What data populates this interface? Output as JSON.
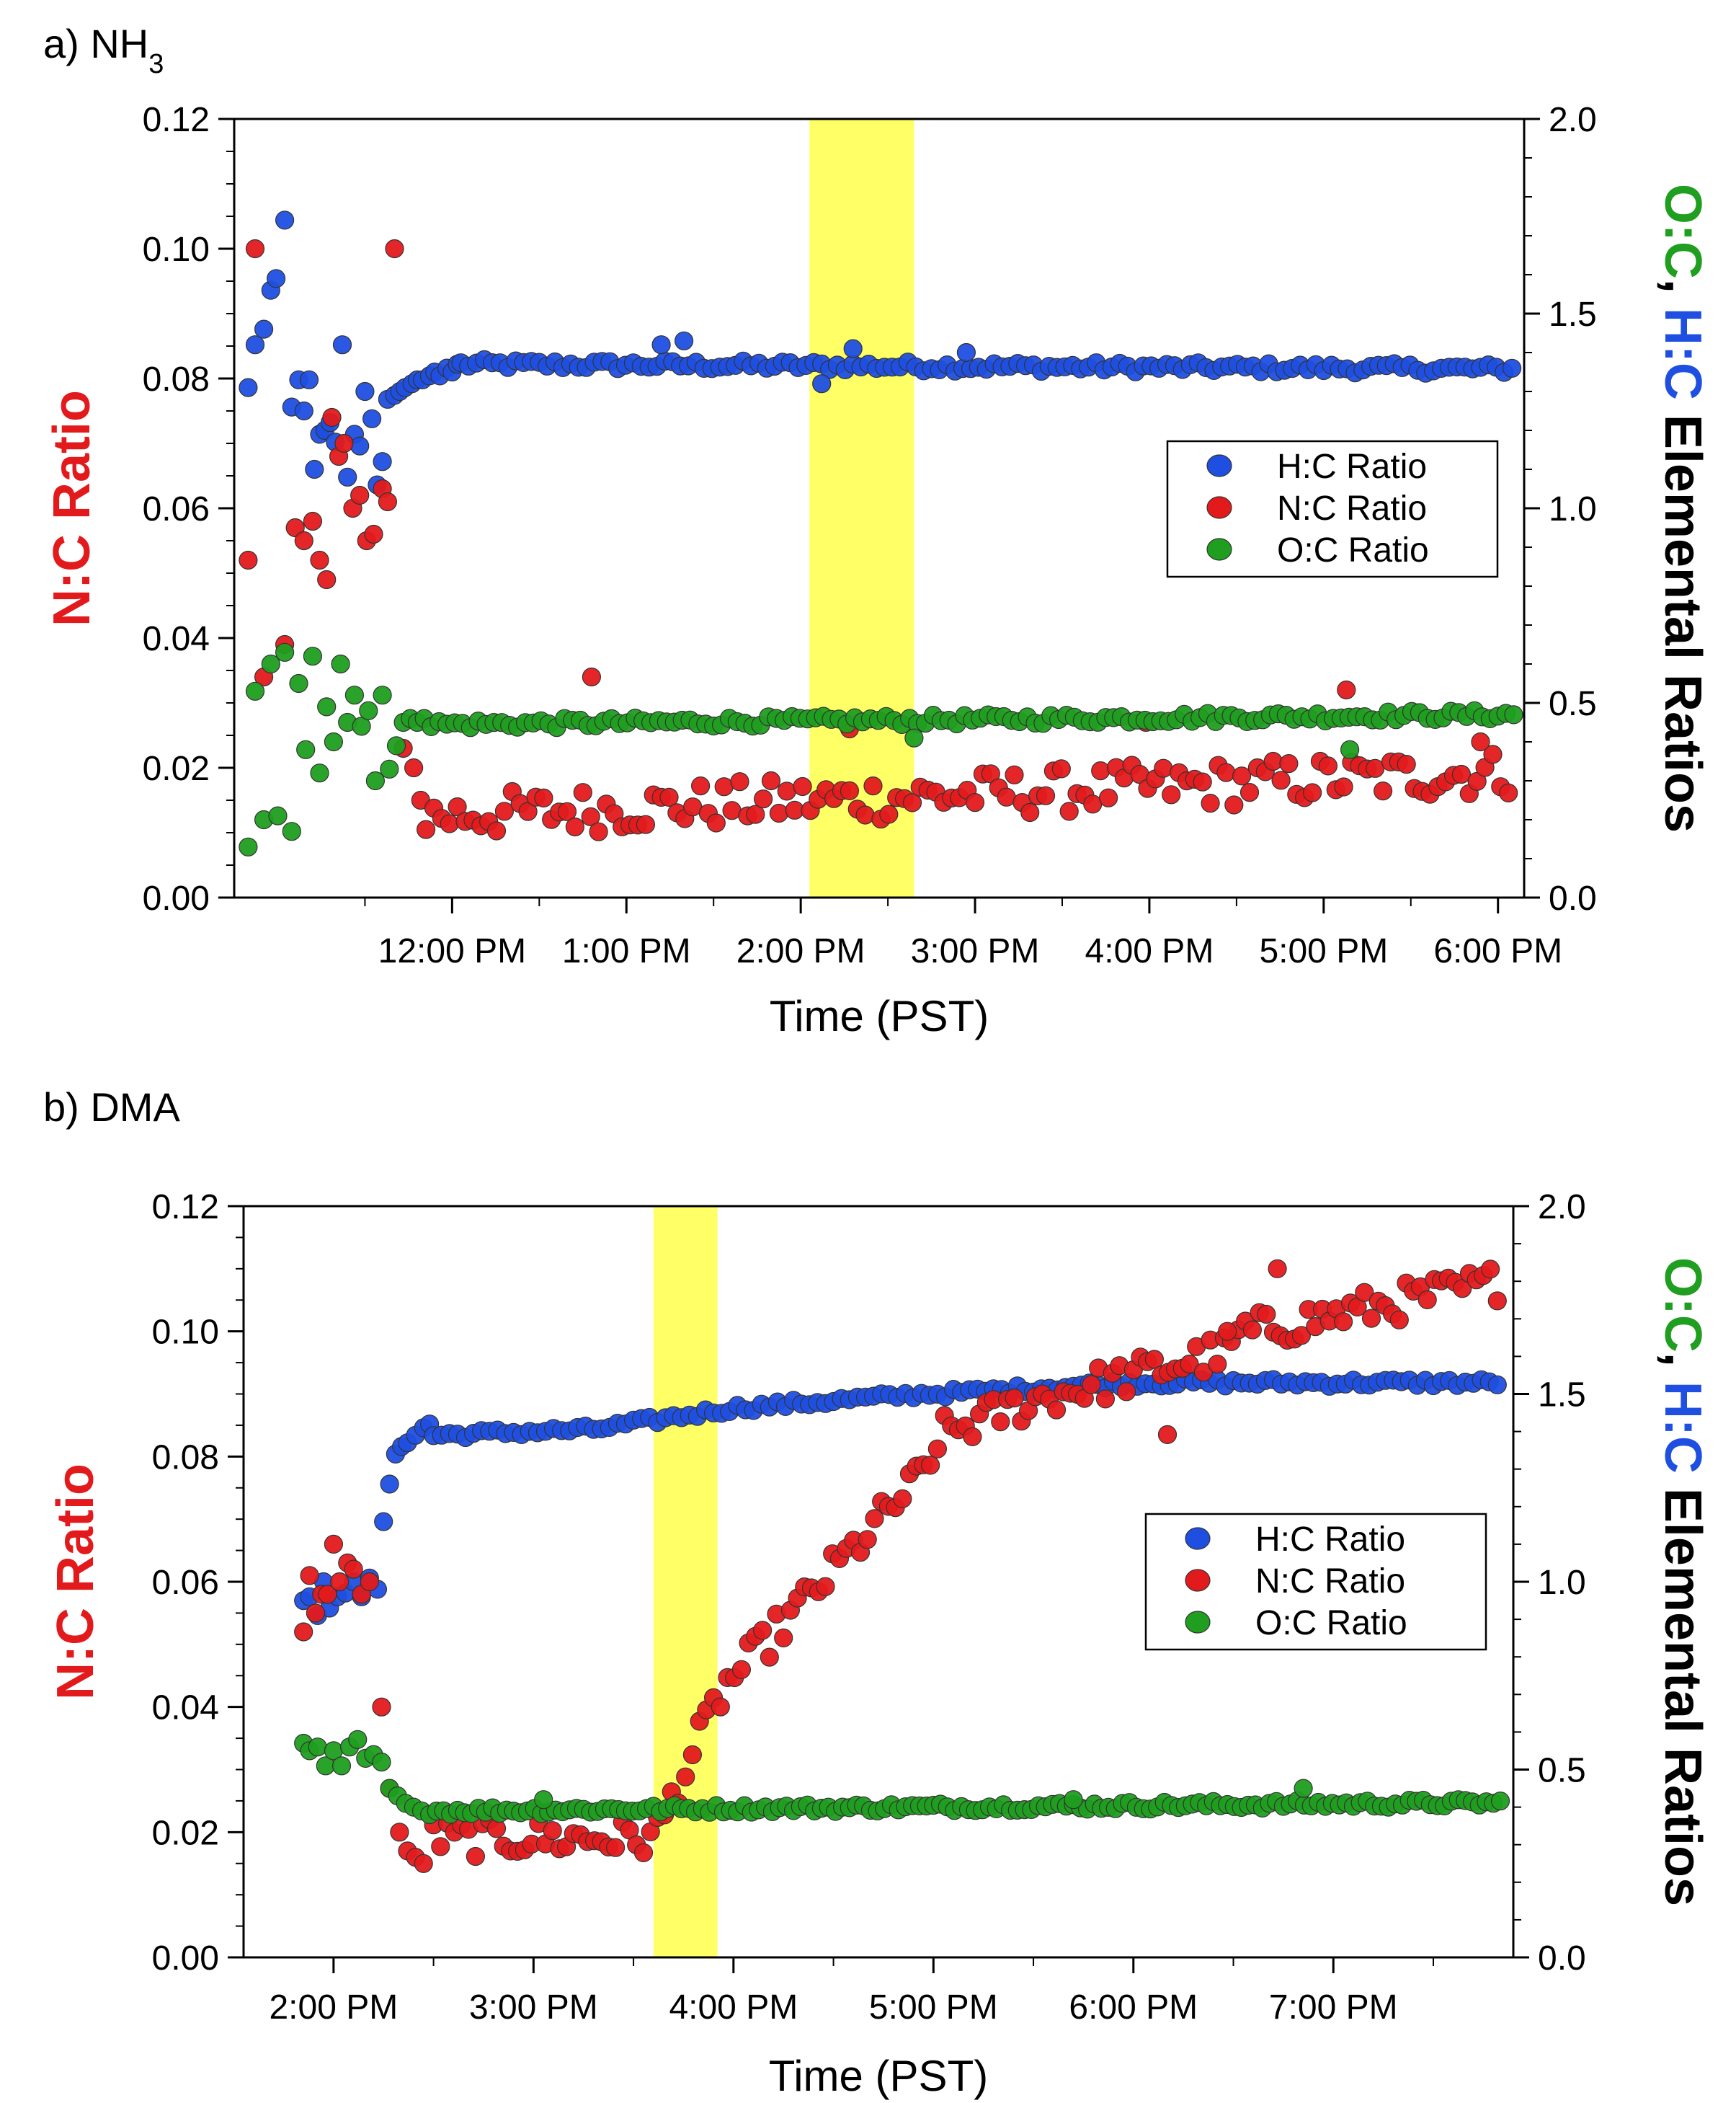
{
  "colors": {
    "hc": "#1f4fe0",
    "nc": "#e31a1c",
    "oc": "#1f9e1f",
    "highlight": "#ffff66",
    "axis": "#000000"
  },
  "chart_data": [
    {
      "panel": "a",
      "title_prefix": "a) NH",
      "title_sub": "3",
      "type": "scatter",
      "xlabel": "Time (PST)",
      "ylabel_left": "N:C Ratio",
      "ylabel_right_parts": [
        "O:C",
        ", ",
        "H:C",
        " Elemental Ratios"
      ],
      "xlim": [
        10.75,
        18.15
      ],
      "ylim_left": [
        0,
        0.12
      ],
      "ylim_right": [
        0,
        2.0
      ],
      "x_ticks": [
        12,
        13,
        14,
        15,
        16,
        17,
        18
      ],
      "x_tick_labels": [
        "12:00 PM",
        "1:00 PM",
        "2:00 PM",
        "3:00 PM",
        "4:00 PM",
        "5:00 PM",
        "6:00 PM"
      ],
      "y_left_ticks": [
        "0.00",
        "0.02",
        "0.04",
        "0.06",
        "0.08",
        "0.10",
        "0.12"
      ],
      "y_right_ticks": [
        "0.0",
        "0.5",
        "1.0",
        "1.5",
        "2.0"
      ],
      "highlight_range": [
        14.05,
        14.65
      ],
      "legend": [
        "H:C Ratio",
        "N:C Ratio",
        "O:C Ratio"
      ],
      "series": [
        {
          "name": "H:C Ratio",
          "axis": "right",
          "early": [
            [
              10.83,
              1.31
            ],
            [
              10.87,
              1.42
            ],
            [
              10.92,
              1.46
            ],
            [
              10.96,
              1.56
            ],
            [
              10.99,
              1.59
            ],
            [
              11.04,
              1.74
            ],
            [
              11.08,
              1.26
            ],
            [
              11.12,
              1.33
            ],
            [
              11.15,
              1.25
            ],
            [
              11.18,
              1.33
            ],
            [
              11.21,
              1.1
            ],
            [
              11.24,
              1.19
            ],
            [
              11.27,
              1.2
            ],
            [
              11.3,
              1.22
            ],
            [
              11.33,
              1.17
            ],
            [
              11.37,
              1.42
            ],
            [
              11.4,
              1.08
            ],
            [
              11.44,
              1.19
            ],
            [
              11.47,
              1.16
            ],
            [
              11.5,
              1.3
            ],
            [
              11.54,
              1.23
            ],
            [
              11.57,
              1.06
            ],
            [
              11.6,
              1.12
            ],
            [
              11.63,
              1.28
            ],
            [
              11.67,
              1.29
            ],
            [
              11.7,
              1.3
            ],
            [
              11.73,
              1.31
            ],
            [
              11.77,
              1.32
            ],
            [
              11.8,
              1.33
            ],
            [
              11.83,
              1.33
            ],
            [
              11.87,
              1.34
            ],
            [
              11.9,
              1.35
            ],
            [
              11.93,
              1.34
            ],
            [
              11.97,
              1.36
            ],
            [
              12.0,
              1.35
            ],
            [
              12.03,
              1.37
            ]
          ],
          "gen": {
            "start": 12.05,
            "end": 18.1,
            "step": 0.045,
            "base": 1.37,
            "slope": -0.002,
            "noise": 0.012
          },
          "outliers": [
            [
              13.33,
              1.43
            ],
            [
              14.3,
              1.41
            ],
            [
              14.95,
              1.4
            ],
            [
              13.2,
              1.42
            ],
            [
              14.12,
              1.32
            ]
          ]
        },
        {
          "name": "N:C Ratio",
          "axis": "left",
          "early": [
            [
              10.83,
              0.052
            ],
            [
              10.87,
              0.1
            ],
            [
              10.92,
              0.034
            ],
            [
              11.04,
              0.039
            ],
            [
              11.1,
              0.057
            ],
            [
              11.15,
              0.055
            ],
            [
              11.2,
              0.058
            ],
            [
              11.24,
              0.052
            ],
            [
              11.28,
              0.049
            ],
            [
              11.31,
              0.074
            ],
            [
              11.35,
              0.068
            ],
            [
              11.38,
              0.07
            ],
            [
              11.43,
              0.06
            ],
            [
              11.47,
              0.062
            ],
            [
              11.51,
              0.055
            ],
            [
              11.55,
              0.056
            ],
            [
              11.6,
              0.063
            ],
            [
              11.63,
              0.061
            ],
            [
              11.67,
              0.1
            ],
            [
              11.72,
              0.023
            ],
            [
              11.78,
              0.02
            ],
            [
              11.82,
              0.015
            ]
          ],
          "gen": {
            "start": 11.85,
            "end": 18.1,
            "step": 0.045,
            "base": 0.0125,
            "slope": 0.0015,
            "noise": 0.0035
          },
          "outliers": [
            [
              12.8,
              0.034
            ],
            [
              15.98,
              0.027
            ],
            [
              17.13,
              0.032
            ],
            [
              17.9,
              0.024
            ],
            [
              14.28,
              0.026
            ]
          ]
        },
        {
          "name": "O:C Ratio",
          "axis": "right",
          "early": [
            [
              10.83,
              0.13
            ],
            [
              10.87,
              0.53
            ],
            [
              10.92,
              0.2
            ],
            [
              10.96,
              0.6
            ],
            [
              11.0,
              0.21
            ],
            [
              11.04,
              0.63
            ],
            [
              11.08,
              0.17
            ],
            [
              11.12,
              0.55
            ],
            [
              11.16,
              0.38
            ],
            [
              11.2,
              0.62
            ],
            [
              11.24,
              0.32
            ],
            [
              11.28,
              0.49
            ],
            [
              11.32,
              0.4
            ],
            [
              11.36,
              0.6
            ],
            [
              11.4,
              0.45
            ],
            [
              11.44,
              0.52
            ],
            [
              11.48,
              0.44
            ],
            [
              11.52,
              0.48
            ],
            [
              11.56,
              0.3
            ],
            [
              11.6,
              0.52
            ],
            [
              11.64,
              0.33
            ],
            [
              11.68,
              0.39
            ],
            [
              11.72,
              0.45
            ],
            [
              11.76,
              0.46
            ],
            [
              11.8,
              0.45
            ],
            [
              11.84,
              0.46
            ]
          ],
          "gen": {
            "start": 11.88,
            "end": 18.1,
            "step": 0.045,
            "base": 0.445,
            "slope": 0.004,
            "noise": 0.012
          },
          "outliers": [
            [
              17.15,
              0.38
            ],
            [
              14.65,
              0.41
            ]
          ]
        }
      ]
    },
    {
      "panel": "b",
      "title_prefix": "b) DMA",
      "title_sub": "",
      "type": "scatter",
      "xlabel": "Time (PST)",
      "ylabel_left": "N:C Ratio",
      "ylabel_right_parts": [
        "O:C",
        ", ",
        "H:C",
        " Elemental Ratios"
      ],
      "xlim": [
        13.55,
        19.9
      ],
      "ylim_left": [
        0,
        0.12
      ],
      "ylim_right": [
        0,
        2.0
      ],
      "x_ticks": [
        14,
        15,
        16,
        17,
        18,
        19
      ],
      "x_tick_labels": [
        "2:00 PM",
        "3:00 PM",
        "4:00 PM",
        "5:00 PM",
        "6:00 PM",
        "7:00 PM"
      ],
      "y_left_ticks": [
        "0.00",
        "0.02",
        "0.04",
        "0.06",
        "0.08",
        "0.10",
        "0.12"
      ],
      "y_right_ticks": [
        "0.0",
        "0.5",
        "1.0",
        "1.5",
        "2.0"
      ],
      "highlight_range": [
        15.6,
        15.92
      ],
      "legend": [
        "H:C Ratio",
        "N:C Ratio",
        "O:C Ratio"
      ],
      "series": [
        {
          "name": "H:C Ratio",
          "axis": "right",
          "early": [
            [
              13.85,
              0.95
            ],
            [
              13.88,
              0.96
            ],
            [
              13.92,
              0.91
            ],
            [
              13.95,
              1.0
            ],
            [
              13.98,
              0.93
            ],
            [
              14.02,
              0.96
            ],
            [
              14.06,
              0.97
            ],
            [
              14.1,
              1.0
            ],
            [
              14.14,
              0.96
            ],
            [
              14.18,
              1.01
            ],
            [
              14.22,
              0.98
            ],
            [
              14.25,
              1.16
            ],
            [
              14.28,
              1.26
            ],
            [
              14.31,
              1.34
            ],
            [
              14.34,
              1.36
            ],
            [
              14.37,
              1.37
            ],
            [
              14.41,
              1.39
            ],
            [
              14.45,
              1.41
            ],
            [
              14.48,
              1.42
            ]
          ],
          "gen": {
            "start": 14.5,
            "end": 19.85,
            "step": 0.04,
            "base": 1.39,
            "slope": 0.0,
            "noise": 0.01,
            "curve": "hc_b"
          },
          "outliers": []
        },
        {
          "name": "N:C Ratio",
          "axis": "left",
          "early": [
            [
              13.85,
              0.052
            ],
            [
              13.88,
              0.061
            ],
            [
              13.91,
              0.055
            ],
            [
              13.94,
              0.058
            ],
            [
              13.97,
              0.058
            ],
            [
              14.0,
              0.066
            ],
            [
              14.03,
              0.06
            ],
            [
              14.07,
              0.063
            ],
            [
              14.1,
              0.062
            ],
            [
              14.14,
              0.058
            ],
            [
              14.18,
              0.06
            ],
            [
              14.24,
              0.04
            ],
            [
              14.28,
              0.027
            ],
            [
              14.33,
              0.02
            ],
            [
              14.37,
              0.017
            ],
            [
              14.41,
              0.016
            ],
            [
              14.45,
              0.015
            ]
          ],
          "gen": {
            "start": 14.5,
            "end": 19.85,
            "step": 0.035,
            "base": 0.0,
            "slope": 0.0,
            "noise": 0.003,
            "curve": "nc_b"
          },
          "outliers": [
            [
              18.17,
              0.0835
            ],
            [
              18.47,
              0.1
            ],
            [
              18.72,
              0.11
            ]
          ]
        },
        {
          "name": "O:C Ratio",
          "axis": "right",
          "early": [
            [
              13.85,
              0.57
            ],
            [
              13.88,
              0.55
            ],
            [
              13.92,
              0.56
            ],
            [
              13.96,
              0.51
            ],
            [
              14.0,
              0.55
            ],
            [
              14.04,
              0.51
            ],
            [
              14.08,
              0.56
            ],
            [
              14.12,
              0.58
            ],
            [
              14.16,
              0.53
            ],
            [
              14.2,
              0.54
            ],
            [
              14.24,
              0.52
            ],
            [
              14.28,
              0.45
            ],
            [
              14.32,
              0.43
            ],
            [
              14.36,
              0.41
            ],
            [
              14.4,
              0.4
            ],
            [
              14.44,
              0.39
            ]
          ],
          "gen": {
            "start": 14.48,
            "end": 19.85,
            "step": 0.035,
            "base": 0.39,
            "slope": 0.004,
            "noise": 0.01
          },
          "outliers": [
            [
              18.85,
              0.45
            ],
            [
              17.7,
              0.42
            ],
            [
              15.05,
              0.42
            ]
          ]
        }
      ]
    }
  ]
}
